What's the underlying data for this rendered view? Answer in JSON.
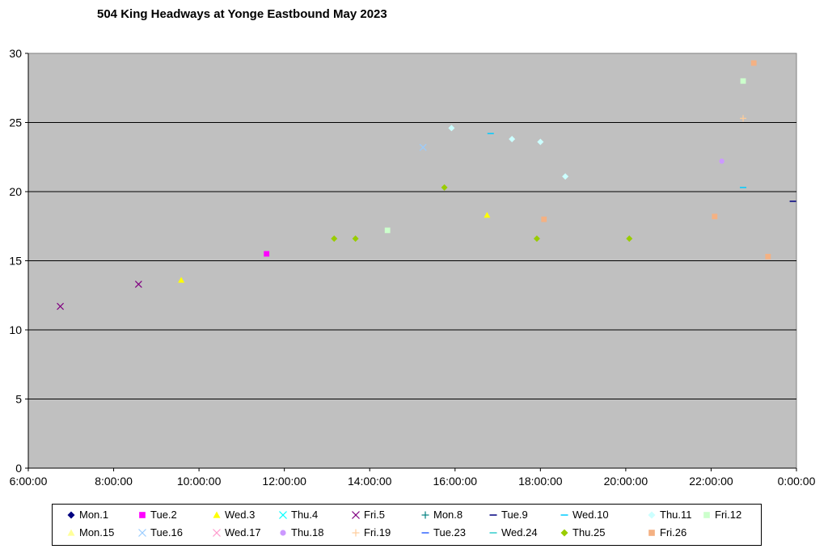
{
  "chart_data": {
    "type": "scatter",
    "title": "504 King Headways at Yonge Eastbound May 2023",
    "xlabel": "",
    "ylabel": "",
    "xlim": [
      "6:00:00",
      "0:00:00"
    ],
    "ylim": [
      0,
      30
    ],
    "x_ticks": [
      "6:00:00",
      "8:00:00",
      "10:00:00",
      "12:00:00",
      "14:00:00",
      "16:00:00",
      "18:00:00",
      "20:00:00",
      "22:00:00",
      "0:00:00"
    ],
    "y_ticks": [
      "0",
      "5",
      "10",
      "15",
      "20",
      "25",
      "30"
    ],
    "grid": "horizontal",
    "legend_position": "bottom",
    "plot_background": "#c0c0c0",
    "series": [
      {
        "name": "Mon.1",
        "marker": "diamond",
        "color": "#000080"
      },
      {
        "name": "Tue.2",
        "marker": "square",
        "color": "#ff00ff"
      },
      {
        "name": "Wed.3",
        "marker": "triangle",
        "color": "#ffff00"
      },
      {
        "name": "Thu.4",
        "marker": "x",
        "color": "#00ffff"
      },
      {
        "name": "Fri.5",
        "marker": "x",
        "color": "#800080"
      },
      {
        "name": "Mon.8",
        "marker": "plus",
        "color": "#008080"
      },
      {
        "name": "Tue.9",
        "marker": "dash",
        "color": "#000080"
      },
      {
        "name": "Wed.10",
        "marker": "dash",
        "color": "#00ccff"
      },
      {
        "name": "Thu.11",
        "marker": "diamond",
        "color": "#ccffff"
      },
      {
        "name": "Fri.12",
        "marker": "square",
        "color": "#ccffcc"
      },
      {
        "name": "Mon.15",
        "marker": "triangle",
        "color": "#ffff99"
      },
      {
        "name": "Tue.16",
        "marker": "x",
        "color": "#99ccff"
      },
      {
        "name": "Wed.17",
        "marker": "x",
        "color": "#ff99cc"
      },
      {
        "name": "Thu.18",
        "marker": "circle",
        "color": "#cc99ff"
      },
      {
        "name": "Fri.19",
        "marker": "plus",
        "color": "#ffcc99"
      },
      {
        "name": "Tue.23",
        "marker": "dash",
        "color": "#3366ff"
      },
      {
        "name": "Wed.24",
        "marker": "dash",
        "color": "#33cccc"
      },
      {
        "name": "Thu.25",
        "marker": "diamond",
        "color": "#99cc00"
      },
      {
        "name": "Fri.26",
        "marker": "square",
        "color": "#f4b183"
      }
    ],
    "notable_points": [
      {
        "series": "Fri.26",
        "x": "23:00:00",
        "y": 29.3
      },
      {
        "series": "Fri.12",
        "x": "22:45:00",
        "y": 28.0
      },
      {
        "series": "Fri.19",
        "x": "22:45:00",
        "y": 25.3
      },
      {
        "series": "Thu.11",
        "x": "15:55:00",
        "y": 24.6
      },
      {
        "series": "Wed.10",
        "x": "16:50:00",
        "y": 24.2
      },
      {
        "series": "Thu.11",
        "x": "17:20:00",
        "y": 23.8
      },
      {
        "series": "Thu.11",
        "x": "18:00:00",
        "y": 23.6
      },
      {
        "series": "Tue.16",
        "x": "15:15:00",
        "y": 23.2
      },
      {
        "series": "Thu.18",
        "x": "22:15:00",
        "y": 22.2
      },
      {
        "series": "Thu.11",
        "x": "18:35:00",
        "y": 21.1
      },
      {
        "series": "Thu.25",
        "x": "15:45:00",
        "y": 20.3
      },
      {
        "series": "Wed.10",
        "x": "22:45:00",
        "y": 20.3
      },
      {
        "series": "Tue.9",
        "x": "23:55:00",
        "y": 19.3
      },
      {
        "series": "Wed.3",
        "x": "16:45:00",
        "y": 18.3
      },
      {
        "series": "Fri.26",
        "x": "18:05:00",
        "y": 18.0
      },
      {
        "series": "Fri.26",
        "x": "22:05:00",
        "y": 18.2
      },
      {
        "series": "Fri.12",
        "x": "14:25:00",
        "y": 17.2
      },
      {
        "series": "Thu.25",
        "x": "13:10:00",
        "y": 16.6
      },
      {
        "series": "Thu.25",
        "x": "13:40:00",
        "y": 16.6
      },
      {
        "series": "Thu.25",
        "x": "17:55:00",
        "y": 16.6
      },
      {
        "series": "Thu.25",
        "x": "20:05:00",
        "y": 16.6
      },
      {
        "series": "Tue.2",
        "x": "11:35:00",
        "y": 15.5
      },
      {
        "series": "Fri.26",
        "x": "23:20:00",
        "y": 15.3
      },
      {
        "series": "Fri.5",
        "x": "8:35:00",
        "y": 13.3
      },
      {
        "series": "Wed.3",
        "x": "9:35:00",
        "y": 13.6
      },
      {
        "series": "Fri.5",
        "x": "6:45:00",
        "y": 11.7
      }
    ]
  }
}
